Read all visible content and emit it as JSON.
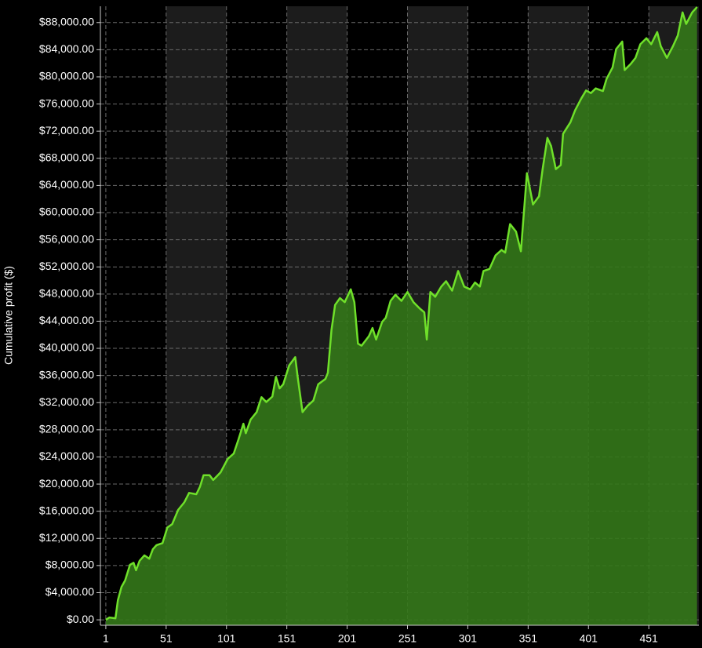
{
  "chart_data": {
    "type": "area",
    "y_label": "Cumulative profit ($)",
    "series": [
      {
        "color": "#6fe02a",
        "fill": "#34781a",
        "x": [
          1,
          4,
          9,
          11,
          14,
          17,
          21,
          24,
          26,
          29,
          33,
          37,
          40,
          43,
          48,
          52,
          56,
          61,
          66,
          70,
          76,
          79,
          82,
          87,
          90,
          96,
          102,
          107,
          111,
          115,
          117,
          121,
          126,
          130,
          134,
          139,
          142,
          145,
          148,
          153,
          158,
          160,
          164,
          168,
          173,
          177,
          183,
          185,
          188,
          191,
          195,
          199,
          204,
          207,
          210,
          213,
          219,
          222,
          225,
          230,
          233,
          237,
          241,
          246,
          251,
          256,
          261,
          265,
          267,
          270,
          274,
          279,
          283,
          288,
          293,
          298,
          303,
          307,
          311,
          314,
          319,
          324,
          329,
          332,
          336,
          341,
          345,
          350,
          355,
          360,
          363,
          367,
          370,
          374,
          378,
          380,
          386,
          390,
          395,
          399,
          403,
          407,
          413,
          416,
          421,
          424,
          429,
          431,
          436,
          440,
          444,
          449,
          453,
          458,
          461,
          466,
          471,
          475,
          479,
          482,
          487,
          491
        ],
        "values": [
          0,
          350,
          230,
          2900,
          4850,
          5800,
          8100,
          8400,
          7300,
          8700,
          9500,
          9000,
          10400,
          11000,
          11300,
          13600,
          14100,
          16200,
          17300,
          18700,
          18500,
          19600,
          21300,
          21300,
          20600,
          21700,
          23700,
          24500,
          26600,
          28900,
          27500,
          29500,
          30600,
          32800,
          32100,
          32900,
          35800,
          34100,
          34700,
          37500,
          38700,
          35800,
          30600,
          31500,
          32300,
          34700,
          35500,
          36400,
          42700,
          46400,
          47400,
          46800,
          48700,
          46800,
          40700,
          40400,
          41800,
          43000,
          41300,
          43900,
          44500,
          47000,
          47900,
          47000,
          48300,
          46800,
          45900,
          45300,
          41300,
          48300,
          47600,
          49100,
          49900,
          48500,
          51400,
          49100,
          48700,
          49700,
          49100,
          51400,
          51700,
          53700,
          54500,
          54100,
          58300,
          57200,
          54300,
          65800,
          61200,
          62400,
          66400,
          71000,
          69800,
          66400,
          67000,
          71600,
          73300,
          75100,
          76800,
          78000,
          77600,
          78300,
          77900,
          79700,
          81400,
          84100,
          85200,
          81000,
          81900,
          82800,
          84800,
          85700,
          84800,
          86600,
          84500,
          82800,
          84500,
          86100,
          89500,
          87800,
          89500,
          90300
        ]
      }
    ],
    "xlim": [
      -3.5,
      492.5
    ],
    "xticks": [
      1,
      51,
      101,
      151,
      201,
      251,
      301,
      351,
      401,
      451
    ],
    "ylim": [
      -800,
      90400
    ],
    "yticks": [
      {
        "value": 0,
        "label": "$0.00"
      },
      {
        "value": 4000,
        "label": "$4,000.00"
      },
      {
        "value": 8000,
        "label": "$8,000.00"
      },
      {
        "value": 12000,
        "label": "$12,000.00"
      },
      {
        "value": 16000,
        "label": "$16,000.00"
      },
      {
        "value": 20000,
        "label": "$20,000.00"
      },
      {
        "value": 24000,
        "label": "$24,000.00"
      },
      {
        "value": 28000,
        "label": "$28,000.00"
      },
      {
        "value": 32000,
        "label": "$32,000.00"
      },
      {
        "value": 36000,
        "label": "$36,000.00"
      },
      {
        "value": 40000,
        "label": "$40,000.00"
      },
      {
        "value": 44000,
        "label": "$44,000.00"
      },
      {
        "value": 48000,
        "label": "$48,000.00"
      },
      {
        "value": 52000,
        "label": "$52,000.00"
      },
      {
        "value": 56000,
        "label": "$56,000.00"
      },
      {
        "value": 60000,
        "label": "$60,000.00"
      },
      {
        "value": 64000,
        "label": "$64,000.00"
      },
      {
        "value": 68000,
        "label": "$68,000.00"
      },
      {
        "value": 72000,
        "label": "$72,000.00"
      },
      {
        "value": 76000,
        "label": "$76,000.00"
      },
      {
        "value": 80000,
        "label": "$80,000.00"
      },
      {
        "value": 84000,
        "label": "$84,000.00"
      },
      {
        "value": 88000,
        "label": "$88,000.00"
      }
    ],
    "grid": true
  }
}
